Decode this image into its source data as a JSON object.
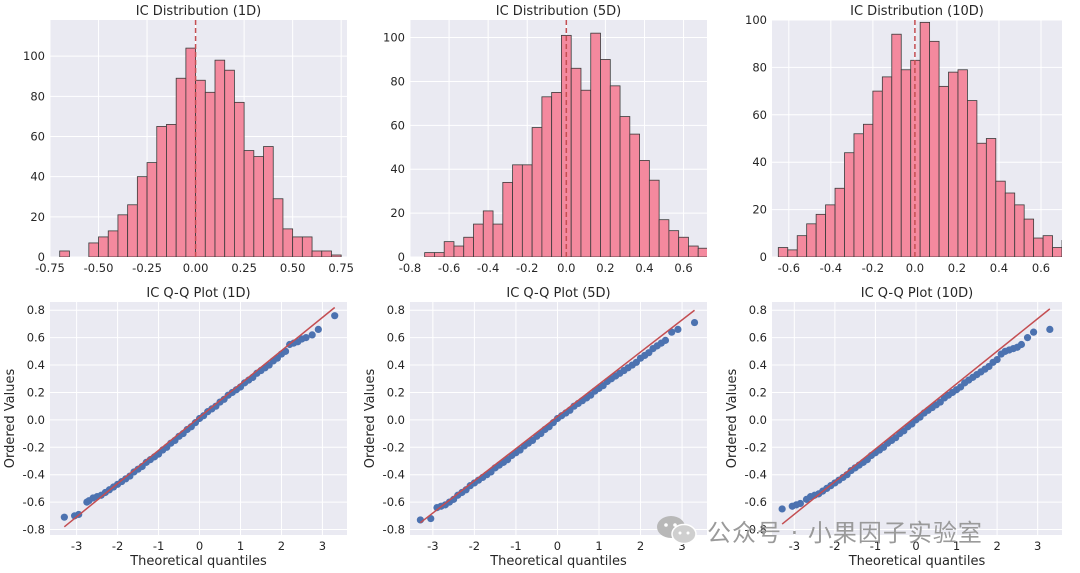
{
  "colors": {
    "axes_bg": "#EAEAF2",
    "grid": "#FFFFFF",
    "hist_fill": "#F4899E",
    "hist_edge": "#3A3A3A",
    "zero_line": "#C44E52",
    "qq_points": "#4C72B0",
    "qq_line": "#C44E52"
  },
  "watermark": {
    "text": "公众号 · 小果因子实验室",
    "logo_icon": "wechat-icon"
  },
  "chart_data": [
    {
      "type": "bar",
      "title": "IC Distribution (1D)",
      "bins_start": -0.7,
      "bin_width": 0.05,
      "values": [
        3,
        0,
        0,
        7,
        10,
        13,
        21,
        26,
        40,
        47,
        65,
        66,
        89,
        104,
        88,
        82,
        98,
        93,
        77,
        53,
        50,
        55,
        29,
        14,
        10,
        10,
        3,
        3,
        1
      ],
      "xlim": [
        -0.75,
        0.78
      ],
      "ylim": [
        0,
        118
      ],
      "xticks": [
        -0.75,
        -0.5,
        -0.25,
        0,
        0.25,
        0.5,
        0.75
      ],
      "xtick_labels": [
        "-0.75",
        "-0.50",
        "-0.25",
        "0.00",
        "0.25",
        "0.50",
        "0.75"
      ],
      "yticks": [
        0,
        20,
        40,
        60,
        80,
        100
      ],
      "ytick_labels": [
        "0",
        "20",
        "40",
        "60",
        "80",
        "100"
      ],
      "vline": 0,
      "grid": true
    },
    {
      "type": "bar",
      "title": "IC Distribution (5D)",
      "bins_start": -0.725,
      "bin_width": 0.05,
      "values": [
        2,
        2,
        7,
        5,
        9,
        15,
        21,
        15,
        34,
        42,
        42,
        59,
        73,
        75,
        101,
        86,
        76,
        102,
        90,
        78,
        64,
        56,
        44,
        35,
        17,
        12,
        9,
        5,
        4,
        3
      ],
      "xlim": [
        -0.8,
        0.72
      ],
      "ylim": [
        0,
        108
      ],
      "xticks": [
        -0.8,
        -0.6,
        -0.4,
        -0.2,
        0,
        0.2,
        0.4,
        0.6
      ],
      "xtick_labels": [
        "-0.8",
        "-0.6",
        "-0.4",
        "-0.2",
        "0.0",
        "0.2",
        "0.4",
        "0.6"
      ],
      "yticks": [
        0,
        20,
        40,
        60,
        80,
        100
      ],
      "ytick_labels": [
        "0",
        "20",
        "40",
        "60",
        "80",
        "100"
      ],
      "vline": 0,
      "grid": true
    },
    {
      "type": "bar",
      "title": "IC Distribution (10D)",
      "bins_start": -0.65,
      "bin_width": 0.045,
      "values": [
        4,
        3,
        9,
        14,
        18,
        22,
        29,
        44,
        52,
        56,
        70,
        76,
        94,
        79,
        83,
        99,
        91,
        72,
        78,
        79,
        66,
        48,
        50,
        32,
        27,
        22,
        16,
        8,
        9,
        4,
        7
      ],
      "xlim": [
        -0.68,
        0.7
      ],
      "ylim": [
        0,
        100
      ],
      "xticks": [
        -0.6,
        -0.4,
        -0.2,
        0,
        0.2,
        0.4,
        0.6
      ],
      "xtick_labels": [
        "-0.6",
        "-0.4",
        "-0.2",
        "0.0",
        "0.2",
        "0.4",
        "0.6"
      ],
      "yticks": [
        0,
        20,
        40,
        60,
        80,
        100
      ],
      "ytick_labels": [
        "0",
        "20",
        "40",
        "60",
        "80",
        "100"
      ],
      "vline": 0,
      "grid": true
    },
    {
      "type": "scatter",
      "title": "IC Q-Q Plot (1D)",
      "xlabel": "Theoretical quantiles",
      "ylabel": "Ordered Values",
      "x": [
        -3.3,
        -3.05,
        -2.95,
        -2.75,
        -2.7,
        -2.6,
        -2.5,
        -2.4,
        -2.3,
        -2.2,
        -2.1,
        -2.0,
        -1.9,
        -1.8,
        -1.7,
        -1.6,
        -1.5,
        -1.4,
        -1.3,
        -1.2,
        -1.1,
        -1.0,
        -0.9,
        -0.8,
        -0.7,
        -0.6,
        -0.5,
        -0.4,
        -0.3,
        -0.2,
        -0.1,
        0,
        0.1,
        0.2,
        0.3,
        0.4,
        0.5,
        0.6,
        0.7,
        0.8,
        0.9,
        1.0,
        1.1,
        1.2,
        1.3,
        1.4,
        1.5,
        1.6,
        1.7,
        1.8,
        1.9,
        2.0,
        2.1,
        2.2,
        2.3,
        2.4,
        2.5,
        2.6,
        2.75,
        2.9,
        3.3
      ],
      "y": [
        -0.71,
        -0.7,
        -0.69,
        -0.6,
        -0.59,
        -0.57,
        -0.56,
        -0.55,
        -0.53,
        -0.51,
        -0.49,
        -0.47,
        -0.45,
        -0.43,
        -0.41,
        -0.38,
        -0.36,
        -0.34,
        -0.31,
        -0.29,
        -0.27,
        -0.25,
        -0.22,
        -0.2,
        -0.17,
        -0.15,
        -0.12,
        -0.1,
        -0.07,
        -0.05,
        -0.02,
        0.01,
        0.03,
        0.06,
        0.08,
        0.1,
        0.13,
        0.15,
        0.18,
        0.2,
        0.22,
        0.24,
        0.27,
        0.29,
        0.31,
        0.34,
        0.36,
        0.38,
        0.4,
        0.43,
        0.45,
        0.48,
        0.5,
        0.55,
        0.56,
        0.57,
        0.59,
        0.6,
        0.62,
        0.66,
        0.76
      ],
      "fit_line": {
        "x": [
          -3.3,
          3.3
        ],
        "y": [
          -0.78,
          0.82
        ]
      },
      "xlim": [
        -3.65,
        3.6
      ],
      "ylim": [
        -0.84,
        0.86
      ],
      "xticks": [
        -3,
        -2,
        -1,
        0,
        1,
        2,
        3
      ],
      "xtick_labels": [
        "-3",
        "-2",
        "-1",
        "0",
        "1",
        "2",
        "3"
      ],
      "yticks": [
        -0.8,
        -0.6,
        -0.4,
        -0.2,
        0,
        0.2,
        0.4,
        0.6,
        0.8
      ],
      "ytick_labels": [
        "-0.8",
        "-0.6",
        "-0.4",
        "-0.2",
        "0.0",
        "0.2",
        "0.4",
        "0.6",
        "0.8"
      ],
      "grid": true
    },
    {
      "type": "scatter",
      "title": "IC Q-Q Plot (5D)",
      "xlabel": "Theoretical quantiles",
      "ylabel": "Ordered Values",
      "x": [
        -3.3,
        -3.05,
        -2.9,
        -2.8,
        -2.7,
        -2.6,
        -2.5,
        -2.4,
        -2.3,
        -2.2,
        -2.1,
        -2.0,
        -1.9,
        -1.8,
        -1.7,
        -1.6,
        -1.5,
        -1.4,
        -1.3,
        -1.2,
        -1.1,
        -1.0,
        -0.9,
        -0.8,
        -0.7,
        -0.6,
        -0.5,
        -0.4,
        -0.3,
        -0.2,
        -0.1,
        0,
        0.1,
        0.2,
        0.3,
        0.4,
        0.5,
        0.6,
        0.7,
        0.8,
        0.9,
        1.0,
        1.1,
        1.2,
        1.3,
        1.4,
        1.5,
        1.6,
        1.7,
        1.8,
        1.9,
        2.0,
        2.1,
        2.2,
        2.3,
        2.4,
        2.5,
        2.6,
        2.75,
        2.9,
        3.3
      ],
      "y": [
        -0.73,
        -0.72,
        -0.64,
        -0.63,
        -0.62,
        -0.6,
        -0.58,
        -0.55,
        -0.53,
        -0.51,
        -0.48,
        -0.46,
        -0.44,
        -0.42,
        -0.4,
        -0.38,
        -0.35,
        -0.33,
        -0.31,
        -0.29,
        -0.26,
        -0.24,
        -0.22,
        -0.19,
        -0.17,
        -0.15,
        -0.12,
        -0.1,
        -0.07,
        -0.05,
        -0.02,
        0.01,
        0.03,
        0.05,
        0.07,
        0.1,
        0.12,
        0.14,
        0.16,
        0.18,
        0.21,
        0.23,
        0.25,
        0.28,
        0.3,
        0.32,
        0.34,
        0.36,
        0.38,
        0.4,
        0.42,
        0.45,
        0.47,
        0.49,
        0.52,
        0.54,
        0.56,
        0.58,
        0.64,
        0.66,
        0.71
      ],
      "fit_line": {
        "x": [
          -3.3,
          3.3
        ],
        "y": [
          -0.75,
          0.8
        ]
      },
      "xlim": [
        -3.55,
        3.6
      ],
      "ylim": [
        -0.84,
        0.86
      ],
      "xticks": [
        -3,
        -2,
        -1,
        0,
        1,
        2,
        3
      ],
      "xtick_labels": [
        "-3",
        "-2",
        "-1",
        "0",
        "1",
        "2",
        "3"
      ],
      "yticks": [
        -0.8,
        -0.6,
        -0.4,
        -0.2,
        0,
        0.2,
        0.4,
        0.6,
        0.8
      ],
      "ytick_labels": [
        "-0.8",
        "-0.6",
        "-0.4",
        "-0.2",
        "0.0",
        "0.2",
        "0.4",
        "0.6",
        "0.8"
      ],
      "grid": true
    },
    {
      "type": "scatter",
      "title": "IC Q-Q Plot (10D)",
      "xlabel": "Theoretical quantiles",
      "ylabel": "Ordered Values",
      "x": [
        -3.3,
        -3.05,
        -2.95,
        -2.85,
        -2.7,
        -2.6,
        -2.5,
        -2.4,
        -2.3,
        -2.2,
        -2.1,
        -2.0,
        -1.9,
        -1.8,
        -1.7,
        -1.6,
        -1.5,
        -1.4,
        -1.3,
        -1.2,
        -1.1,
        -1.0,
        -0.9,
        -0.8,
        -0.7,
        -0.6,
        -0.5,
        -0.4,
        -0.3,
        -0.2,
        -0.1,
        0,
        0.1,
        0.2,
        0.3,
        0.4,
        0.5,
        0.6,
        0.7,
        0.8,
        0.9,
        1.0,
        1.1,
        1.2,
        1.3,
        1.4,
        1.5,
        1.6,
        1.7,
        1.8,
        1.9,
        2.0,
        2.1,
        2.2,
        2.3,
        2.4,
        2.5,
        2.6,
        2.75,
        2.9,
        3.3
      ],
      "y": [
        -0.65,
        -0.63,
        -0.62,
        -0.61,
        -0.58,
        -0.56,
        -0.55,
        -0.54,
        -0.52,
        -0.5,
        -0.48,
        -0.46,
        -0.44,
        -0.42,
        -0.4,
        -0.37,
        -0.35,
        -0.33,
        -0.31,
        -0.29,
        -0.26,
        -0.24,
        -0.22,
        -0.2,
        -0.17,
        -0.15,
        -0.13,
        -0.1,
        -0.08,
        -0.05,
        -0.03,
        0.0,
        0.02,
        0.05,
        0.07,
        0.09,
        0.11,
        0.13,
        0.16,
        0.18,
        0.2,
        0.22,
        0.24,
        0.27,
        0.29,
        0.31,
        0.33,
        0.35,
        0.37,
        0.39,
        0.42,
        0.44,
        0.48,
        0.5,
        0.51,
        0.52,
        0.53,
        0.55,
        0.6,
        0.64,
        0.66
      ],
      "fit_line": {
        "x": [
          -3.3,
          3.3
        ],
        "y": [
          -0.76,
          0.81
        ]
      },
      "xlim": [
        -3.55,
        3.6
      ],
      "ylim": [
        -0.84,
        0.86
      ],
      "xticks": [
        -3,
        -2,
        -1,
        0,
        1,
        2,
        3
      ],
      "xtick_labels": [
        "-3",
        "-2",
        "-1",
        "0",
        "1",
        "2",
        "3"
      ],
      "yticks": [
        -0.8,
        -0.6,
        -0.4,
        -0.2,
        0,
        0.2,
        0.4,
        0.6,
        0.8
      ],
      "ytick_labels": [
        "-0.8",
        "-0.6",
        "-0.4",
        "-0.2",
        "0.0",
        "0.2",
        "0.4",
        "0.6",
        "0.8"
      ],
      "grid": true
    }
  ]
}
